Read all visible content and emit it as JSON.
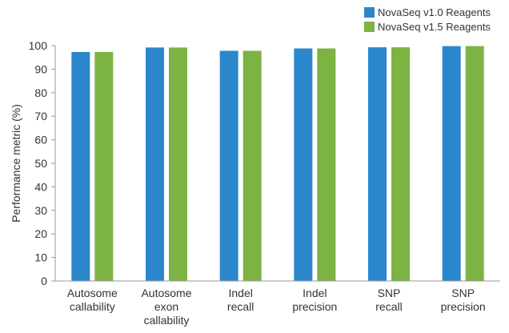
{
  "chart_data": {
    "type": "bar",
    "categories": [
      [
        "Autosome",
        "callability"
      ],
      [
        "Autosome",
        "exon",
        "callability"
      ],
      [
        "Indel",
        "recall"
      ],
      [
        "Indel",
        "precision"
      ],
      [
        "SNP",
        "recall"
      ],
      [
        "SNP",
        "precision"
      ]
    ],
    "series": [
      {
        "name": "NovaSeq v1.0 Reagents",
        "color": "#2a87cb",
        "values": [
          97.3,
          99.2,
          97.8,
          98.8,
          99.3,
          99.8
        ]
      },
      {
        "name": "NovaSeq v1.5 Reagents",
        "color": "#7cb342",
        "values": [
          97.3,
          99.2,
          97.8,
          98.8,
          99.3,
          99.8
        ]
      }
    ],
    "ylabel": "Performance metric (%)",
    "ylim": [
      0,
      100
    ],
    "yticks": [
      0,
      10,
      20,
      30,
      40,
      50,
      60,
      70,
      80,
      90,
      100
    ],
    "grid": false,
    "legend": "top-right"
  }
}
